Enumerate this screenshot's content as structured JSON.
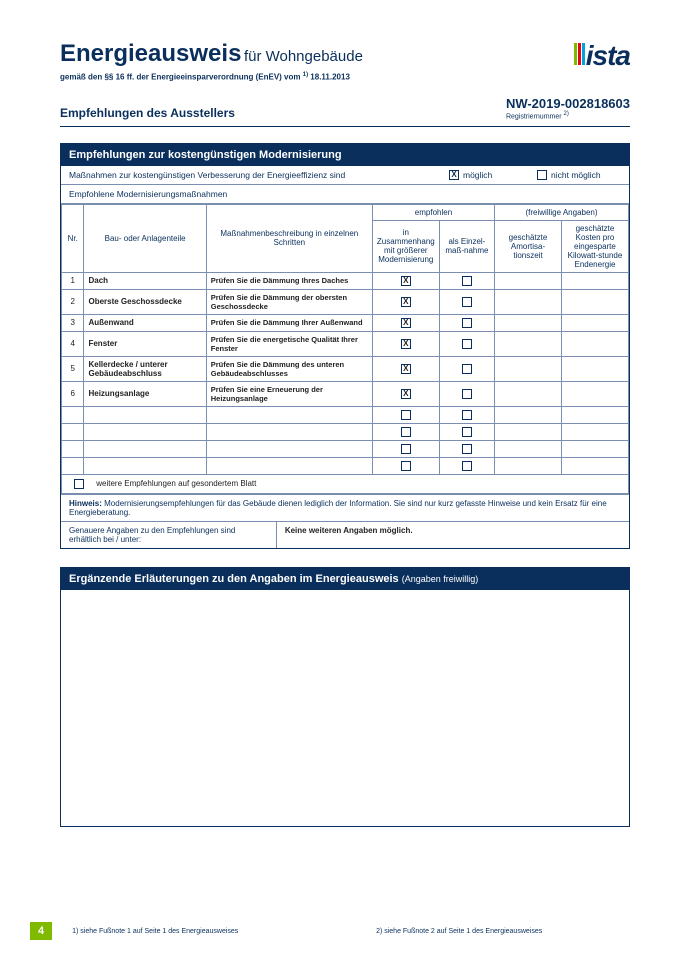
{
  "header": {
    "title_main": "Energieausweis",
    "title_sub": "für Wohngebäude",
    "subtitle": "gemäß den §§ 16 ff. der Energieeinsparverordnung (EnEV) vom ",
    "subtitle_sup": "1)",
    "subtitle_date": " 18.11.2013",
    "logo_text": "ista",
    "logo_bar_colors": [
      "#7fba00",
      "#e30613",
      "#00a3e0"
    ]
  },
  "reg": {
    "section": "Empfehlungen des Ausstellers",
    "number": "NW-2019-002818603",
    "label": "Registriernummer ",
    "label_sup": "2)"
  },
  "box1": {
    "header": "Empfehlungen zur kostengünstigen Modernisierung",
    "line_measures": "Maßnahmen zur kostengünstigen Verbesserung der Energieeffizienz sind",
    "opt_possible": "möglich",
    "opt_notpossible": "nicht möglich",
    "possible_checked": true,
    "line_recommended": "Empfohlene Modernisierungsmaßnahmen",
    "th_nr": "Nr.",
    "th_part": "Bau- oder Anlagenteile",
    "th_desc": "Maßnahmenbeschreibung in einzelnen Schritten",
    "th_group_emp": "empfohlen",
    "th_group_opt": "(freiwillige Angaben)",
    "th_emp1": "in Zusammenhang mit größerer Modernisierung",
    "th_emp2": "als Einzel-maß-nahme",
    "th_opt1": "geschätzte Amortisa-tionszeit",
    "th_opt2": "geschätzte Kosten pro eingesparte Kilowatt-stunde Endenergie",
    "rows": [
      {
        "nr": "1",
        "part": "Dach",
        "desc": "Prüfen Sie die Dämmung Ihres Daches",
        "c1": true,
        "c2": false
      },
      {
        "nr": "2",
        "part": "Oberste Geschossdecke",
        "desc": "Prüfen Sie die Dämmung der obersten Geschossdecke",
        "c1": true,
        "c2": false
      },
      {
        "nr": "3",
        "part": "Außenwand",
        "desc": "Prüfen Sie die Dämmung Ihrer Außenwand",
        "c1": true,
        "c2": false
      },
      {
        "nr": "4",
        "part": "Fenster",
        "desc": "Prüfen Sie die energetische Qualität Ihrer Fenster",
        "c1": true,
        "c2": false
      },
      {
        "nr": "5",
        "part": "Kellerdecke / unterer Gebäudeabschluss",
        "desc": "Prüfen Sie die Dämmung des unteren Gebäudeabschlusses",
        "c1": true,
        "c2": false
      },
      {
        "nr": "6",
        "part": "Heizungsanlage",
        "desc": "Prüfen Sie eine Erneuerung der Heizungsanlage",
        "c1": true,
        "c2": false
      }
    ],
    "empty_rows": 4,
    "weitere": "weitere Empfehlungen auf gesondertem Blatt",
    "hinweis_label": "Hinweis:",
    "hinweis_text": "Modernisierungsempfehlungen für das Gebäude dienen lediglich der Information. Sie sind nur kurz gefasste Hinweise und kein Ersatz für eine Energieberatung.",
    "detail_left": "Genauere Angaben zu den Empfehlungen sind erhältlich bei / unter:",
    "detail_right": "Keine weiteren Angaben möglich."
  },
  "box2": {
    "header_main": "Ergänzende Erläuterungen zu den Angaben im Energieausweis ",
    "header_sub": "(Angaben freiwillig)"
  },
  "footer": {
    "page": "4",
    "fn1": "1) siehe Fußnote 1 auf Seite 1 des Energieausweises",
    "fn2": "2) siehe Fußnote 2 auf Seite 1 des Energieausweises"
  },
  "colors": {
    "primary": "#0a2f5c",
    "accent": "#7fba00"
  }
}
